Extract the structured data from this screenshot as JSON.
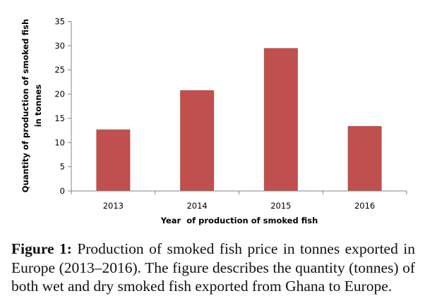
{
  "chart_data": {
    "type": "bar",
    "title": "",
    "categories": [
      "2013",
      "2014",
      "2015",
      "2016"
    ],
    "values": [
      12.7,
      20.8,
      29.5,
      13.4
    ],
    "xlabel": "Year  of production of smoked fish",
    "ylabel_lines": [
      "Quantity of production of smoked fish",
      "in tonnes"
    ],
    "ylim": [
      0,
      35
    ],
    "yticks": [
      0,
      5,
      10,
      15,
      20,
      25,
      30,
      35
    ],
    "grid": false,
    "legend": "none",
    "bar_color": "#C0504D",
    "axis_color": "#868686"
  },
  "caption": {
    "label": "Figure 1:",
    "text": " Production of smoked fish price in tonnes exported in Europe (2013–2016). The figure describes the quantity (tonnes) of both wet and dry smoked fish exported from Ghana to Europe."
  }
}
